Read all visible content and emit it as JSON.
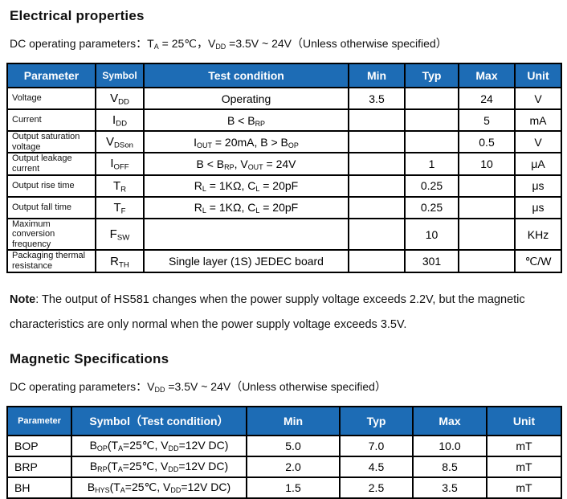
{
  "page": {
    "background": "#ffffff",
    "table_header_blue": "#1d6cb5",
    "table_header_text": "#ffffff",
    "border_color": "#000000"
  },
  "electrical": {
    "title": "Electrical properties",
    "conditions": "DC operating parameters：T{A} = 25℃，V{DD} =3.5V ~ 24V（Unless otherwise specified）",
    "table": {
      "headers": [
        "Parameter",
        "Symbol",
        "Test condition",
        "Min",
        "Typ",
        "Max",
        "Unit"
      ],
      "rows": [
        [
          "Voltage",
          "V{DD}",
          "Operating",
          "3.5",
          "",
          "24",
          "V"
        ],
        [
          "Current",
          "I{DD}",
          "B < B{RP}",
          "",
          "",
          "5",
          "mA"
        ],
        [
          "Output saturation voltage",
          "V{DSon}",
          "I{OUT} = 20mA, B > B{OP}",
          "",
          "",
          "0.5",
          "V"
        ],
        [
          "Output leakage current",
          "I{OFF}",
          "B < B{RP}, V{OUT} = 24V",
          "",
          "1",
          "10",
          "μA"
        ],
        [
          "Output rise time",
          "T{R}",
          "R{L} = 1KΩ, C{L} = 20pF",
          "",
          "0.25",
          "",
          "μs"
        ],
        [
          "Output fall time",
          "T{F}",
          "R{L} = 1KΩ, C{L} = 20pF",
          "",
          "0.25",
          "",
          "μs"
        ],
        [
          "Maximum conversion frequency",
          "F{SW}",
          "",
          "",
          "10",
          "",
          "KHz"
        ],
        [
          "Packaging thermal resistance",
          "R{TH}",
          "Single layer (1S) JEDEC board",
          "",
          "301",
          "",
          "℃/W"
        ]
      ]
    }
  },
  "note": {
    "label": "Note",
    "text": ": The output of HS581 changes when the power supply voltage exceeds 2.2V, but the magnetic characteristics are only normal when the power supply voltage exceeds 3.5V."
  },
  "magnetic": {
    "title": "Magnetic Specifications",
    "conditions": "DC operating parameters：V{DD} =3.5V ~ 24V（Unless otherwise specified）",
    "table": {
      "headers": [
        "Parameter",
        "Symbol（Test condition）",
        "Min",
        "Typ",
        "Max",
        "Unit"
      ],
      "rows": [
        [
          "BOP",
          "B{OP}(T{A}=25℃, V{DD}=12V DC)",
          "5.0",
          "7.0",
          "10.0",
          "mT"
        ],
        [
          "BRP",
          "B{RP}(T{A}=25℃, V{DD}=12V DC)",
          "2.0",
          "4.5",
          "8.5",
          "mT"
        ],
        [
          "BH",
          "B{HYS}(T{A}=25℃, V{DD}=12V DC)",
          "1.5",
          "2.5",
          "3.5",
          "mT"
        ]
      ]
    }
  }
}
